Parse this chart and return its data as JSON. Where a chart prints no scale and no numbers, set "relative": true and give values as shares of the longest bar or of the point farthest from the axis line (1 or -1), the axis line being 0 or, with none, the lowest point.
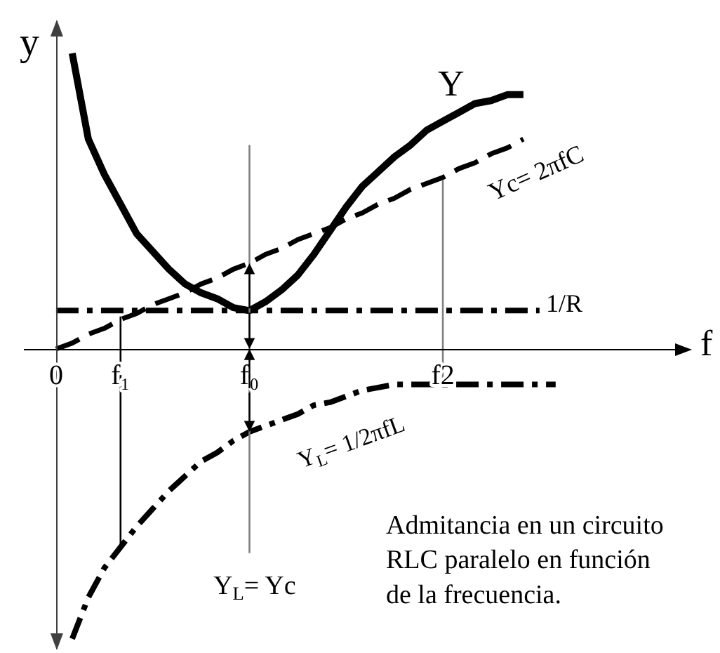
{
  "chart_data": {
    "type": "line",
    "relative": true,
    "xlabel": "f",
    "ylabel": "y",
    "categories": [
      "0",
      null,
      null,
      null,
      "f₁",
      null,
      null,
      null,
      null,
      null,
      null,
      null,
      "f₀",
      null,
      null,
      null,
      null,
      null,
      null,
      null,
      null,
      null,
      null,
      null,
      "f2",
      null,
      null,
      null,
      null,
      null,
      null,
      null
    ],
    "series": [
      {
        "name": "Y",
        "color": "#000000",
        "line_style": "solid",
        "values": [
          null,
          1.0,
          0.71,
          0.59,
          0.49,
          0.39,
          0.33,
          0.27,
          0.22,
          0.19,
          0.17,
          0.14,
          0.13,
          0.16,
          0.2,
          0.25,
          0.32,
          0.4,
          0.48,
          0.55,
          0.6,
          0.65,
          0.69,
          0.74,
          0.77,
          0.8,
          0.83,
          0.84,
          0.86,
          0.86,
          null,
          null
        ]
      },
      {
        "name": "Yc= 2πfC",
        "color": "#000000",
        "line_style": "dashed",
        "values": [
          0,
          0.02,
          0.05,
          0.07,
          0.1,
          0.12,
          0.15,
          0.17,
          0.19,
          0.22,
          0.24,
          0.27,
          0.29,
          0.32,
          0.34,
          0.37,
          0.39,
          0.41,
          0.44,
          0.46,
          0.49,
          0.51,
          0.54,
          0.56,
          0.58,
          0.61,
          0.63,
          0.66,
          0.68,
          0.71,
          null,
          null
        ]
      },
      {
        "name": "1/R",
        "color": "#000000",
        "line_style": "dashdot",
        "values": [
          0.13,
          0.13,
          0.13,
          0.13,
          0.13,
          0.13,
          0.13,
          0.13,
          0.13,
          0.13,
          0.13,
          0.13,
          0.13,
          0.13,
          0.13,
          0.13,
          0.13,
          0.13,
          0.13,
          0.13,
          0.13,
          0.13,
          0.13,
          0.13,
          0.13,
          0.13,
          0.13,
          0.13,
          0.13,
          0.13,
          0.13,
          null
        ]
      },
      {
        "name": "Y$_{L}$= 1/2πfL",
        "color": "#000000",
        "line_style": "dashdot",
        "values": [
          null,
          -0.98,
          -0.84,
          -0.74,
          -0.67,
          -0.6,
          -0.54,
          -0.48,
          -0.43,
          -0.38,
          -0.35,
          -0.31,
          -0.28,
          -0.26,
          -0.24,
          -0.22,
          -0.19,
          -0.18,
          -0.16,
          -0.14,
          -0.13,
          -0.12,
          -0.12,
          -0.12,
          -0.12,
          -0.12,
          -0.12,
          -0.12,
          -0.12,
          -0.12,
          -0.12,
          -0.12
        ]
      },
      {
        "color": "#000000",
        "line_style": "solid",
        "x": [
          "f₁",
          "f₁"
        ],
        "values": [
          0.11,
          -0.67
        ]
      },
      {
        "color": "#808080",
        "line_style": "solid",
        "x": [
          "f₀",
          "f₀"
        ],
        "values": [
          0.69,
          -0.69
        ]
      },
      {
        "color": "#808080",
        "line_style": "solid",
        "x": [
          "f2",
          "f2"
        ],
        "values": [
          0.57,
          -0.12
        ]
      }
    ],
    "annotations": [
      "Y$_{L}$= Yc",
      "Admitancia en un circuito\nRLC paralelo en función\nde la frecuencia."
    ]
  }
}
